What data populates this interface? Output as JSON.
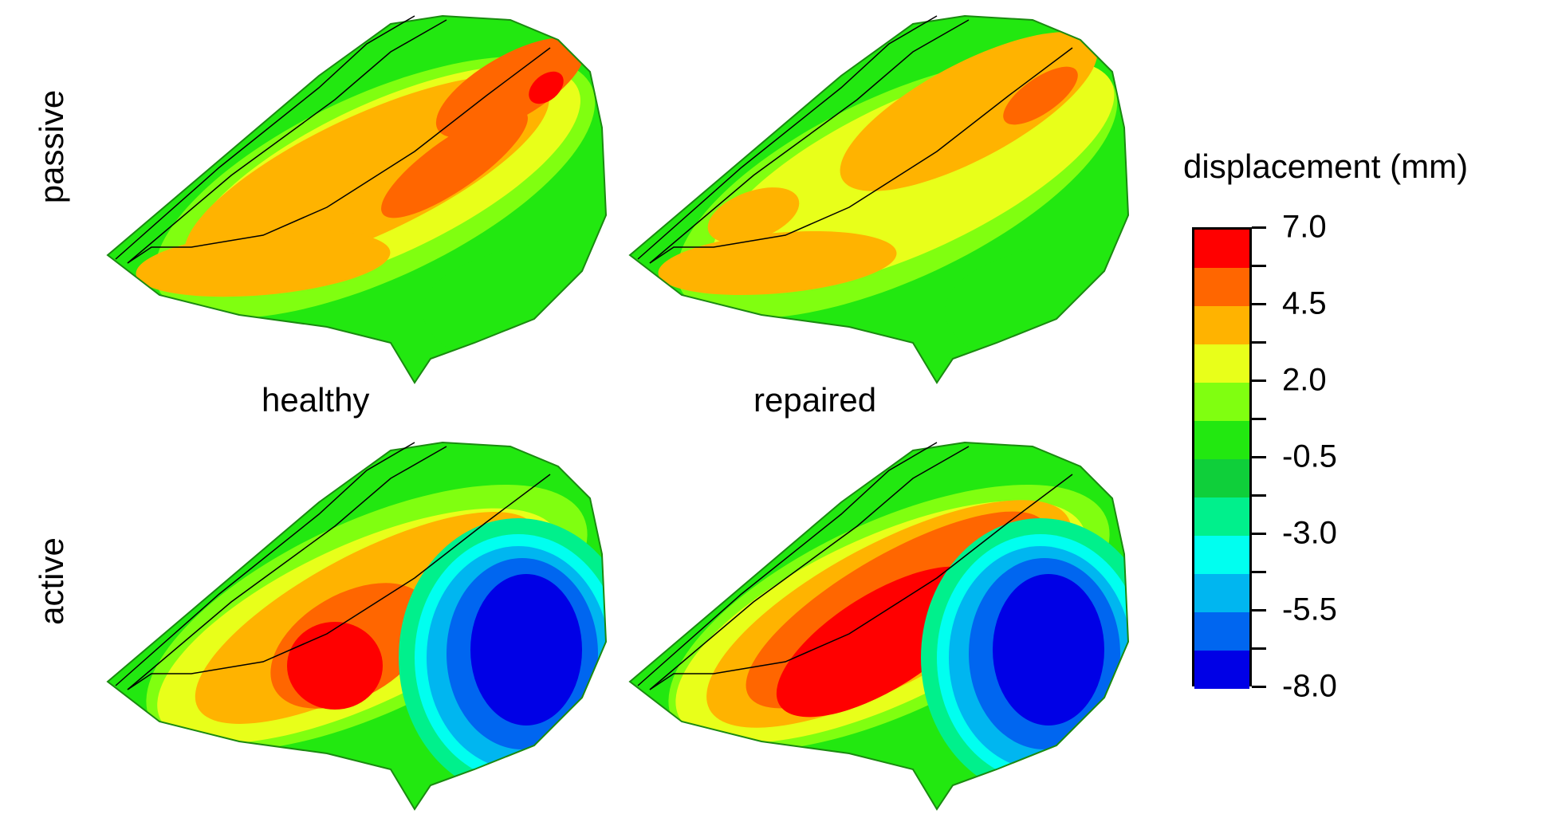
{
  "row_labels": {
    "passive": "passive",
    "active": "active"
  },
  "column_labels": {
    "healthy": "healthy",
    "repaired": "repaired"
  },
  "legend": {
    "title": "displacement (mm)",
    "tick_labels": [
      "7.0",
      "4.5",
      "2.0",
      "-0.5",
      "-3.0",
      "-5.5",
      "-8.0"
    ],
    "colors": [
      "#ff0000",
      "#ff6600",
      "#ffb300",
      "#e8ff1a",
      "#80ff10",
      "#22e810",
      "#0fcf3a",
      "#00f08c",
      "#00fff0",
      "#00b6f0",
      "#0066f0",
      "#0000e6"
    ]
  },
  "surface_colors": {
    "red": "#ff0000",
    "dark_orange": "#ff6600",
    "orange": "#ffb300",
    "yellow": "#e8ff1a",
    "lime": "#80ff10",
    "green": "#22e810",
    "teal": "#00f08c",
    "cyan": "#00fff0",
    "sky": "#00b6f0",
    "blue": "#0066f0",
    "navy": "#0000e6"
  }
}
